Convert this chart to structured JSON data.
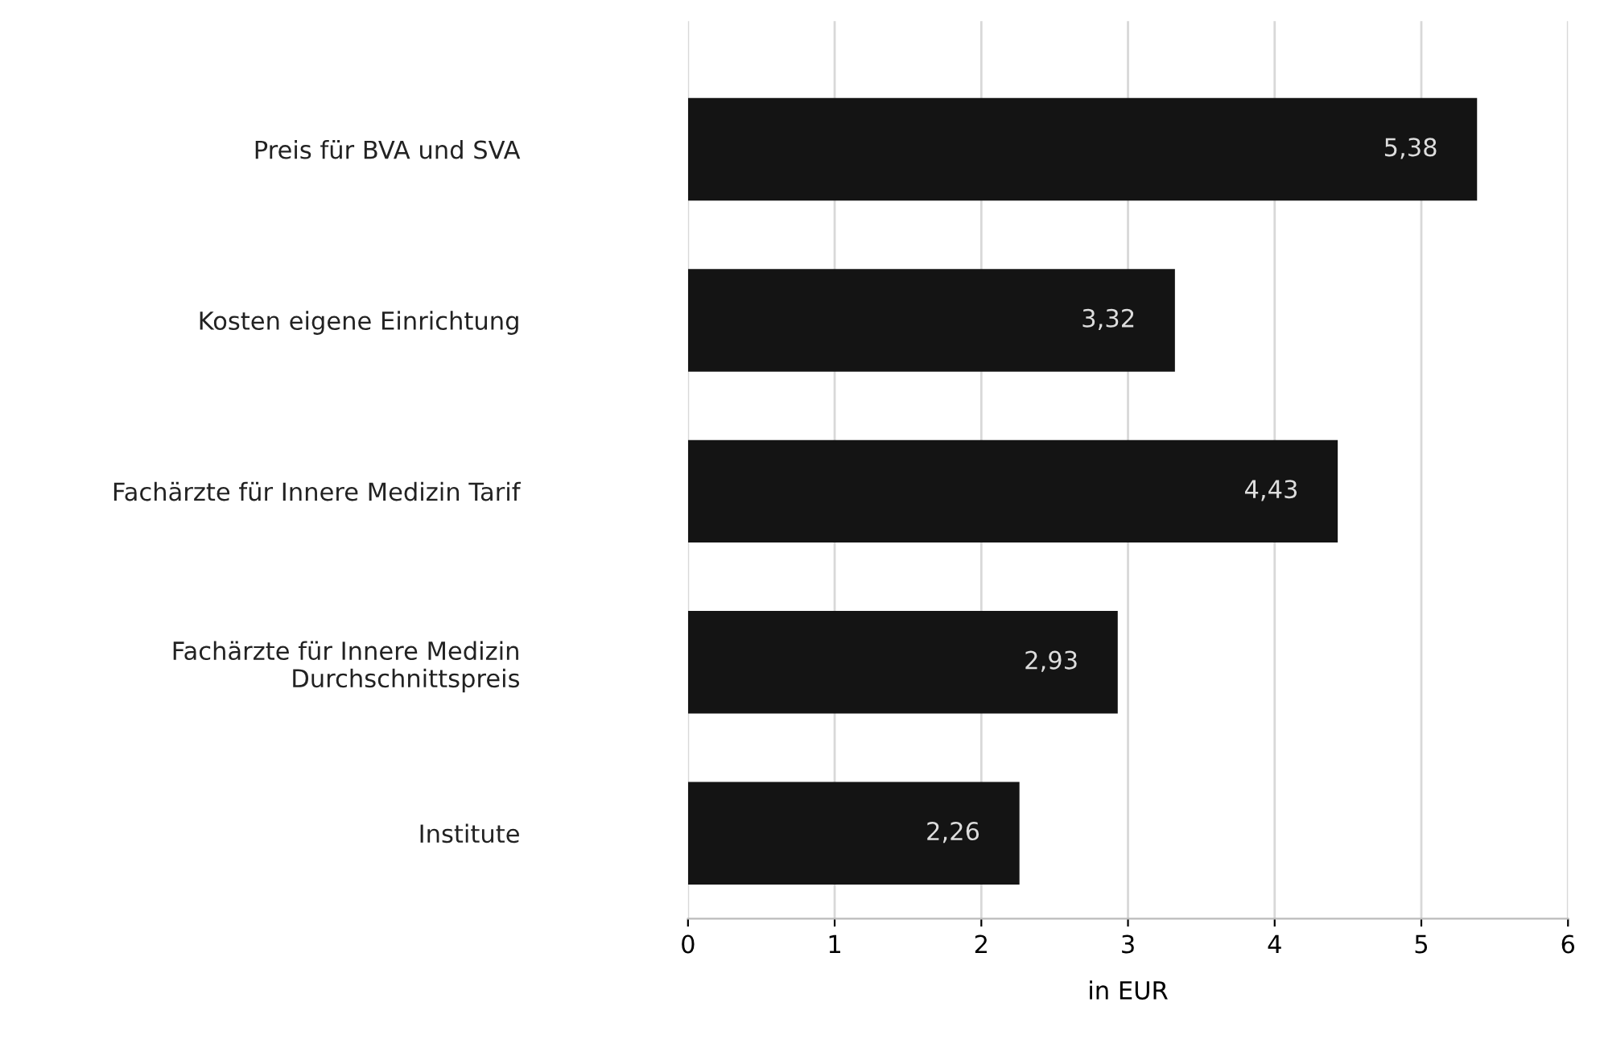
{
  "chart_data": {
    "type": "bar",
    "orientation": "horizontal",
    "xlabel": "in EUR",
    "categories": [
      "Preis für BVA und SVA",
      "Kosten eigene Einrichtung",
      "Fachärzte für Innere Medizin Tarif",
      "Fachärzte für Innere Medizin\nDurchschnittspreis",
      "Institute"
    ],
    "values": [
      5.38,
      3.32,
      4.43,
      2.93,
      2.26
    ],
    "value_labels": [
      "5,38",
      "3,32",
      "4,43",
      "2,93",
      "2,26"
    ],
    "color": "#141414",
    "xlim": [
      0,
      6
    ],
    "xticks": [
      0,
      1,
      2,
      3,
      4,
      5,
      6
    ],
    "grid": "x"
  }
}
